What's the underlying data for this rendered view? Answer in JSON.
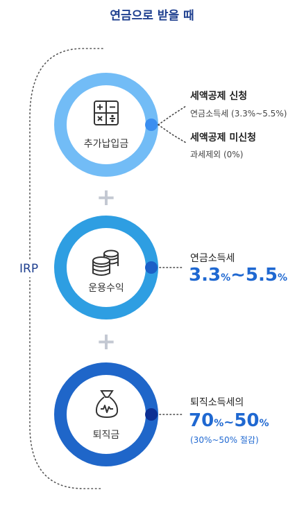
{
  "title": "연금으로 받을 때",
  "irp_label": "IRP",
  "steps": [
    {
      "label": "추가납입금",
      "icon": "calculator-icon",
      "color": "#72bcf6",
      "dot": "#3a8ef0"
    },
    {
      "label": "운용수익",
      "icon": "coin-stack-icon",
      "color": "#2e9ee2",
      "dot": "#1b5fc7"
    },
    {
      "label": "퇴직금",
      "icon": "money-bag-icon",
      "color": "#1f66c9",
      "dot": "#0c2f93"
    }
  ],
  "plus_sign": "+",
  "step1": {
    "a_title": "세액공제 신청",
    "a_sub": "연금소득세 (3.3%~5.5%)",
    "b_title": "세액공제 미신청",
    "b_sub": "과세제외 (0%)"
  },
  "step2": {
    "label": "연금소득세",
    "v1": "3.3",
    "pct1": "%",
    "sep": "~",
    "v2": "5.5",
    "pct2": "%"
  },
  "step3": {
    "label": "퇴직소득세의",
    "v1": "70",
    "pct1": "%",
    "sep": "~",
    "v2": "50",
    "pct2": "%",
    "note": "(30%~50% 절감)"
  },
  "colors": {
    "title": "#1e3f8f",
    "accent": "#1f68d1",
    "plus": "#c3c8d2"
  }
}
